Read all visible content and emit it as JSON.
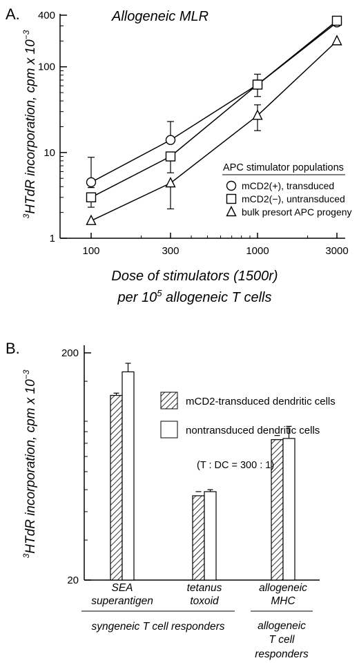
{
  "panelA": {
    "label": "A.",
    "title": "Allogeneic MLR",
    "ylabel_prefix": "3",
    "ylabel_main": "HTdR incorporation, cpm x 10",
    "ylabel_exp": "−3",
    "xlabel_line1": "Dose of stimulators (1500r)",
    "xlabel_line2_pre": "per 10",
    "xlabel_line2_exp": "5",
    "xlabel_line2_post": " allogeneic T cells",
    "legend_title": "APC stimulator populations",
    "chart_data": {
      "type": "line",
      "x": [
        100,
        300,
        1000,
        3000
      ],
      "xticks": [
        "100",
        "300",
        "1000",
        "3000"
      ],
      "yticks": [
        "1",
        "10",
        "100",
        "400"
      ],
      "ytick_values": [
        1,
        10,
        100,
        400
      ],
      "xscale": "log",
      "yscale": "log",
      "xlim": [
        100,
        3000
      ],
      "ylim": [
        1,
        400
      ],
      "legend_position": "lower-right",
      "series": [
        {
          "name": "mCD2(+), transduced",
          "marker": "circle",
          "values": [
            4.5,
            14,
            62,
            330
          ],
          "err_hi": [
            8.8,
            23,
            82,
            330
          ],
          "err_lo": [
            3.9,
            14,
            62,
            330
          ]
        },
        {
          "name": "mCD2(−), untransduced",
          "marker": "square",
          "values": [
            3.0,
            9.0,
            62,
            345
          ],
          "err_hi": [
            3.0,
            9.0,
            70,
            345
          ],
          "err_lo": [
            2.3,
            5.8,
            45,
            345
          ]
        },
        {
          "name": "bulk presort APC progeny",
          "marker": "triangle",
          "values": [
            1.6,
            4.4,
            27,
            200
          ],
          "err_hi": [
            1.6,
            4.4,
            36,
            200
          ],
          "err_lo": [
            1.6,
            2.2,
            18,
            200
          ]
        }
      ]
    }
  },
  "panelB": {
    "label": "B.",
    "ylabel_prefix": "3",
    "ylabel_main": "HTdR incorporation, cpm x 10",
    "ylabel_exp": "−3",
    "ratio_note": "(T : DC = 300 : 1)",
    "group_left_label": "syngeneic T cell responders",
    "group_right_label": [
      "allogeneic",
      "T cell",
      "responders"
    ],
    "chart_data": {
      "type": "bar",
      "yscale": "log",
      "ylim": [
        20,
        200
      ],
      "yticks": [
        "20",
        "200"
      ],
      "ytick_values": [
        20,
        200
      ],
      "categories": [
        {
          "line1": "SEA",
          "line2": "superantigen"
        },
        {
          "line1": "tetanus",
          "line2": "toxoid"
        },
        {
          "line1": "allogeneic",
          "line2": "MHC"
        }
      ],
      "legend_position": "top-right",
      "series": [
        {
          "name": "mCD2-transduced dendritic cells",
          "pattern": "hatched",
          "values": [
            130,
            47,
            83
          ],
          "err": [
            133,
            47,
            83
          ]
        },
        {
          "name": "nontransduced dendritic cells",
          "pattern": "open",
          "values": [
            165,
            49,
            84
          ],
          "err": [
            180,
            50,
            95
          ]
        }
      ]
    }
  }
}
